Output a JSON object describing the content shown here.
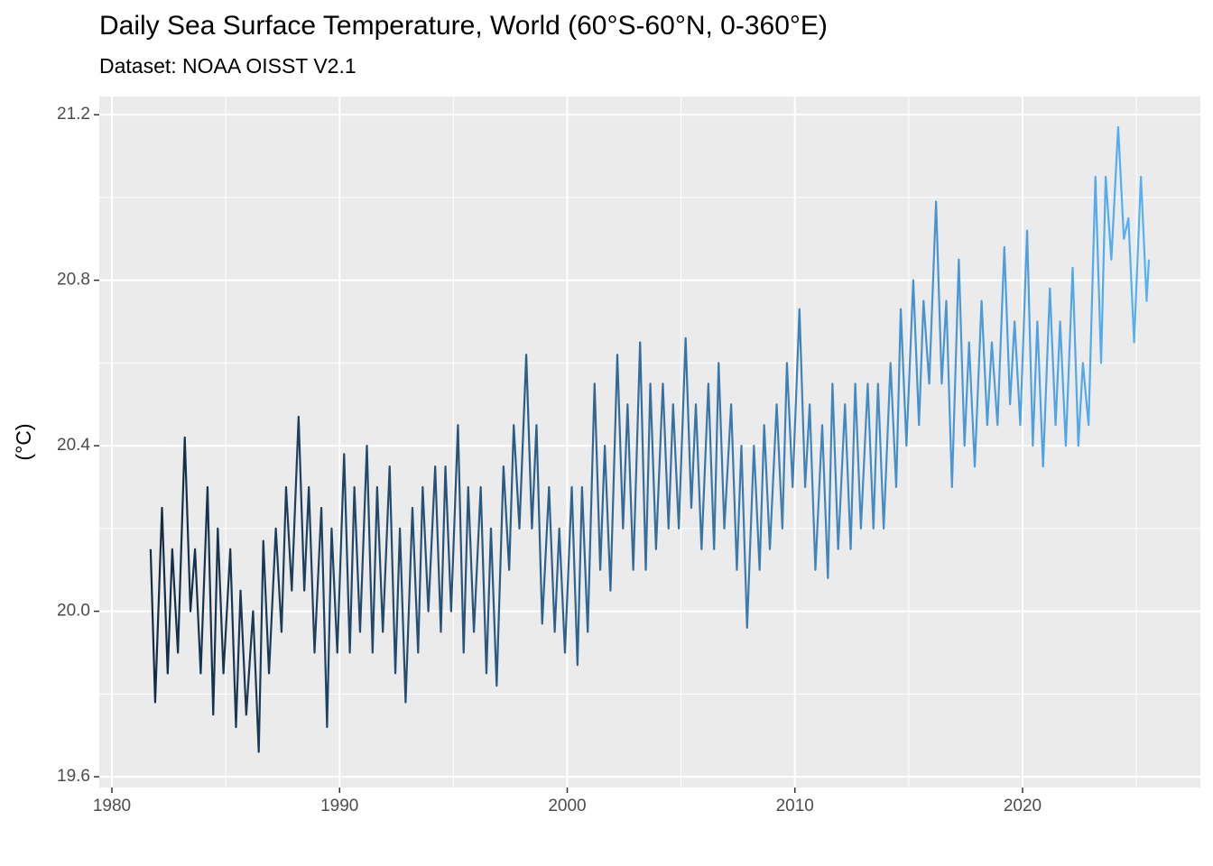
{
  "chart_data": {
    "type": "line",
    "title": "Daily Sea Surface Temperature, World (60°S-60°N, 0-360°E)",
    "subtitle": "Dataset: NOAA OISST V2.1",
    "y_label": "(°C)",
    "color_gradient": [
      "#132B43",
      "#56B1F7"
    ],
    "grid": true,
    "xlim": [
      1979.445,
      2027.81
    ],
    "ylim": [
      19.574,
      21.244
    ],
    "xticks": [
      1980,
      1990,
      2000,
      2010,
      2020
    ],
    "xminorticks": [
      1985,
      1995,
      2005,
      2015,
      2025
    ],
    "yticks": [
      19.6,
      {
        "value": 20,
        "label": "20.0"
      },
      20.4,
      20.8,
      21.2
    ],
    "yminorticks": [
      19.8,
      20.2,
      20.6,
      21.0
    ],
    "x": [
      1981.7,
      1981.9,
      1982.2,
      1982.45,
      1982.65,
      1982.9,
      1983.2,
      1983.45,
      1983.65,
      1983.9,
      1984.2,
      1984.45,
      1984.65,
      1984.9,
      1985.2,
      1985.45,
      1985.65,
      1985.9,
      1986.2,
      1986.45,
      1986.65,
      1986.9,
      1987.2,
      1987.45,
      1987.65,
      1987.9,
      1988.2,
      1988.45,
      1988.65,
      1988.9,
      1989.2,
      1989.45,
      1989.65,
      1989.9,
      1990.2,
      1990.45,
      1990.65,
      1990.9,
      1991.2,
      1991.45,
      1991.65,
      1991.9,
      1992.2,
      1992.45,
      1992.65,
      1992.9,
      1993.2,
      1993.45,
      1993.65,
      1993.9,
      1994.2,
      1994.45,
      1994.65,
      1994.9,
      1995.2,
      1995.45,
      1995.65,
      1995.9,
      1996.2,
      1996.45,
      1996.65,
      1996.9,
      1997.2,
      1997.45,
      1997.65,
      1997.9,
      1998.2,
      1998.45,
      1998.65,
      1998.9,
      1999.2,
      1999.45,
      1999.65,
      1999.9,
      2000.2,
      2000.45,
      2000.65,
      2000.9,
      2001.2,
      2001.45,
      2001.65,
      2001.9,
      2002.2,
      2002.45,
      2002.65,
      2002.9,
      2003.2,
      2003.45,
      2003.65,
      2003.9,
      2004.2,
      2004.45,
      2004.65,
      2004.9,
      2005.2,
      2005.45,
      2005.65,
      2005.9,
      2006.2,
      2006.45,
      2006.65,
      2006.9,
      2007.2,
      2007.45,
      2007.65,
      2007.9,
      2008.2,
      2008.45,
      2008.65,
      2008.9,
      2009.2,
      2009.45,
      2009.65,
      2009.9,
      2010.2,
      2010.45,
      2010.65,
      2010.9,
      2011.2,
      2011.45,
      2011.65,
      2011.9,
      2012.2,
      2012.45,
      2012.65,
      2012.9,
      2013.2,
      2013.45,
      2013.65,
      2013.9,
      2014.2,
      2014.45,
      2014.65,
      2014.9,
      2015.2,
      2015.45,
      2015.65,
      2015.9,
      2016.2,
      2016.45,
      2016.65,
      2016.9,
      2017.2,
      2017.45,
      2017.65,
      2017.9,
      2018.2,
      2018.45,
      2018.65,
      2018.9,
      2019.2,
      2019.45,
      2019.65,
      2019.9,
      2020.2,
      2020.45,
      2020.65,
      2020.9,
      2021.2,
      2021.45,
      2021.65,
      2021.9,
      2022.2,
      2022.45,
      2022.65,
      2022.9,
      2023.2,
      2023.45,
      2023.65,
      2023.9,
      2024.2,
      2024.45,
      2024.65,
      2024.9,
      2025.2,
      2025.45,
      2025.55
    ],
    "values": [
      20.15,
      19.78,
      20.25,
      19.85,
      20.15,
      19.9,
      20.42,
      20.0,
      20.15,
      19.85,
      20.3,
      19.75,
      20.2,
      19.85,
      20.15,
      19.72,
      20.05,
      19.75,
      20.0,
      19.66,
      20.17,
      19.85,
      20.2,
      19.95,
      20.3,
      20.05,
      20.47,
      20.05,
      20.3,
      19.9,
      20.25,
      19.72,
      20.2,
      19.9,
      20.38,
      19.9,
      20.3,
      19.95,
      20.4,
      19.9,
      20.3,
      19.95,
      20.35,
      19.85,
      20.2,
      19.78,
      20.25,
      19.9,
      20.3,
      20.0,
      20.35,
      19.95,
      20.35,
      20.0,
      20.45,
      19.9,
      20.3,
      19.95,
      20.3,
      19.85,
      20.2,
      19.82,
      20.35,
      20.1,
      20.45,
      20.2,
      20.62,
      20.2,
      20.45,
      19.97,
      20.3,
      19.95,
      20.2,
      19.9,
      20.3,
      19.87,
      20.3,
      19.95,
      20.55,
      20.1,
      20.4,
      20.05,
      20.62,
      20.2,
      20.5,
      20.1,
      20.65,
      20.1,
      20.55,
      20.15,
      20.55,
      20.2,
      20.5,
      20.2,
      20.66,
      20.25,
      20.5,
      20.15,
      20.55,
      20.15,
      20.6,
      20.2,
      20.5,
      20.1,
      20.4,
      19.96,
      20.4,
      20.1,
      20.45,
      20.15,
      20.5,
      20.2,
      20.6,
      20.3,
      20.73,
      20.3,
      20.5,
      20.1,
      20.45,
      20.08,
      20.55,
      20.15,
      20.5,
      20.15,
      20.55,
      20.2,
      20.55,
      20.2,
      20.55,
      20.2,
      20.6,
      20.3,
      20.73,
      20.4,
      20.8,
      20.45,
      20.75,
      20.55,
      20.99,
      20.55,
      20.75,
      20.3,
      20.85,
      20.4,
      20.65,
      20.35,
      20.75,
      20.45,
      20.65,
      20.45,
      20.88,
      20.5,
      20.7,
      20.45,
      20.92,
      20.4,
      20.7,
      20.35,
      20.78,
      20.45,
      20.7,
      20.4,
      20.83,
      20.4,
      20.6,
      20.45,
      21.05,
      20.6,
      21.05,
      20.85,
      21.17,
      20.9,
      20.95,
      20.65,
      21.05,
      20.75,
      20.85
    ]
  }
}
